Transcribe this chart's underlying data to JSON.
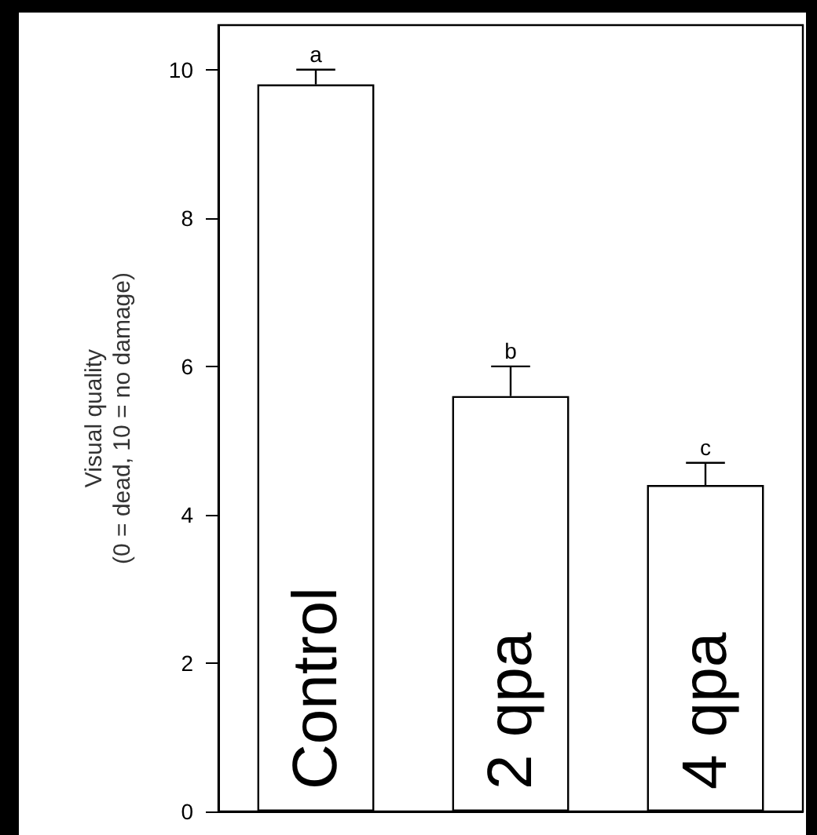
{
  "chart_data": {
    "type": "bar",
    "ylabel": "Visual quality\n(0 = dead, 10 = no damage)",
    "categories": [
      "Control",
      "2 qpa",
      "4 qpa"
    ],
    "values": [
      9.8,
      5.6,
      4.4
    ],
    "errors": [
      0.2,
      0.4,
      0.3
    ],
    "color": "#ffffff",
    "ylim": [
      0,
      10.6
    ],
    "yticks": [
      0,
      2,
      4,
      6,
      8,
      10
    ],
    "grid": false,
    "annotations": [
      {
        "text": "a",
        "x": "Control",
        "y": 10.0
      },
      {
        "text": "b",
        "x": "2 qpa",
        "y": 6.0
      },
      {
        "text": "c",
        "x": "4 qpa",
        "y": 4.7
      }
    ]
  }
}
